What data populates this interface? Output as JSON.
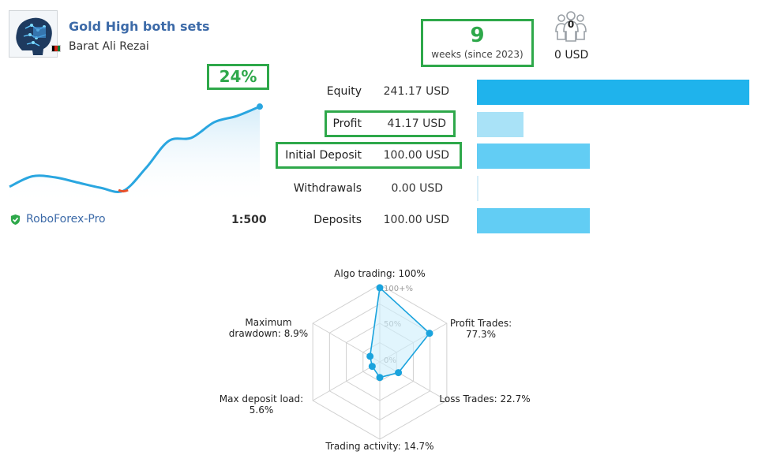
{
  "header": {
    "signal_name": "Gold High both sets",
    "author": "Barat Ali Rezai",
    "author_flag_colors": [
      "#000000",
      "#d32011",
      "#007a36"
    ],
    "avatar_icon": "robot-brain-avatar"
  },
  "growth": {
    "value": "24%"
  },
  "age": {
    "weeks": "9",
    "label": "weeks (since 2023)"
  },
  "subscribers": {
    "icon": "subscribers-icon",
    "count": "0",
    "funds": "0 USD"
  },
  "equity_curve": {
    "type": "area",
    "description_color_line": "#2aa6e0",
    "drawdown_color": "#e8502a",
    "values": [
      0.1,
      0.2,
      0.19,
      0.14,
      0.09,
      0.06,
      0.28,
      0.54,
      0.57,
      0.72,
      0.78,
      0.87
    ]
  },
  "broker": {
    "name": "RoboForex-Pro",
    "leverage": "1:500"
  },
  "stats": [
    {
      "label": "Equity",
      "value": "241.17 USD",
      "amount": 241.17,
      "color": "#1fb3ec"
    },
    {
      "label": "Profit",
      "value": "41.17 USD",
      "amount": 41.17,
      "color": "#a9e2f7"
    },
    {
      "label": "Initial Deposit",
      "value": "100.00 USD",
      "amount": 100.0,
      "color": "#62cdf4"
    },
    {
      "label": "Withdrawals",
      "value": "0.00 USD",
      "amount": 0.0,
      "color": "#62cdf4"
    },
    {
      "label": "Deposits",
      "value": "100.00 USD",
      "amount": 100.0,
      "color": "#62cdf4"
    }
  ],
  "radar": {
    "scale_labels": [
      "100+%",
      "50%",
      "0%"
    ],
    "axes": [
      {
        "label_lines": [
          "Algo trading: 100%"
        ],
        "value": 100
      },
      {
        "label_lines": [
          "Profit Trades:",
          "77.3%"
        ],
        "value": 77.3
      },
      {
        "label_lines": [
          "Loss Trades: 22.7%"
        ],
        "value": 22.7
      },
      {
        "label_lines": [
          "Trading activity: 14.7%"
        ],
        "value": 14.7
      },
      {
        "label_lines": [
          "Max deposit load:",
          "5.6%"
        ],
        "value": 5.6
      },
      {
        "label_lines": [
          "Maximum",
          "drawdown: 8.9%"
        ],
        "value": 8.9
      }
    ],
    "color": "#1aa3dd"
  }
}
